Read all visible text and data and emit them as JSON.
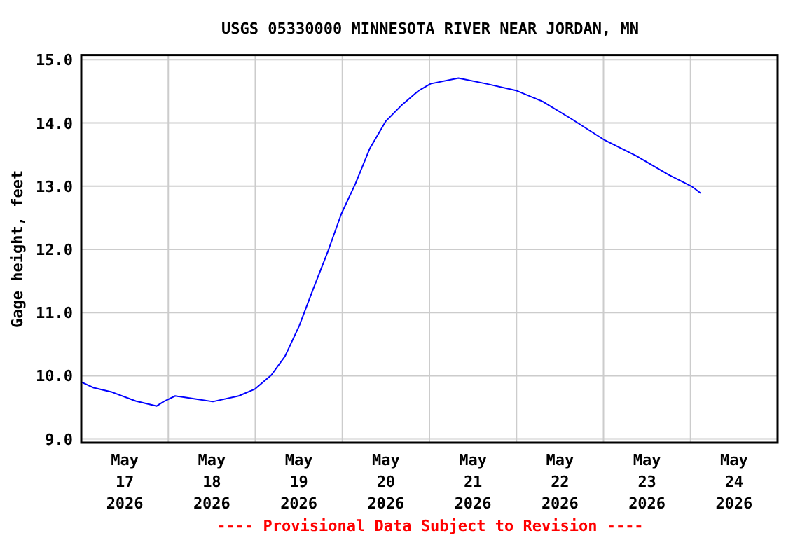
{
  "chart_data": {
    "type": "line",
    "title": "USGS 05330000 MINNESOTA RIVER NEAR JORDAN, MN",
    "ylabel": "Gage height, feet",
    "annotations": [
      "---- Provisional Data Subject to Revision ----"
    ],
    "xlim": [
      "2026-05-17T00:00",
      "2026-05-25T00:00"
    ],
    "xticks": [
      {
        "value": "2026-05-17T00:00",
        "label": null
      },
      {
        "value": "2026-05-17T12:00",
        "label": "May\n17\n2026"
      },
      {
        "value": "2026-05-18T00:00",
        "label": null
      },
      {
        "value": "2026-05-18T12:00",
        "label": "May\n18\n2026"
      },
      {
        "value": "2026-05-19T00:00",
        "label": null
      },
      {
        "value": "2026-05-19T12:00",
        "label": "May\n19\n2026"
      },
      {
        "value": "2026-05-20T00:00",
        "label": null
      },
      {
        "value": "2026-05-20T12:00",
        "label": "May\n20\n2026"
      },
      {
        "value": "2026-05-21T00:00",
        "label": null
      },
      {
        "value": "2026-05-21T12:00",
        "label": "May\n21\n2026"
      },
      {
        "value": "2026-05-22T00:00",
        "label": null
      },
      {
        "value": "2026-05-22T12:00",
        "label": "May\n22\n2026"
      },
      {
        "value": "2026-05-23T00:00",
        "label": null
      },
      {
        "value": "2026-05-23T12:00",
        "label": "May\n23\n2026"
      },
      {
        "value": "2026-05-24T00:00",
        "label": null
      },
      {
        "value": "2026-05-24T12:00",
        "label": "May\n24\n2026"
      }
    ],
    "ylim": [
      8.94,
      15.075
    ],
    "yticks": [
      {
        "value": 9,
        "label": "9.0"
      },
      {
        "value": 10,
        "label": "10.0"
      },
      {
        "value": 11,
        "label": "11.0"
      },
      {
        "value": 12,
        "label": "12.0"
      },
      {
        "value": 13,
        "label": "13.0"
      },
      {
        "value": 14,
        "label": "14.0"
      },
      {
        "value": 15,
        "label": "15.0"
      }
    ],
    "grid": true,
    "x": [
      "2026-05-17T00:00",
      "2026-05-17T03:24",
      "2026-05-17T08:30",
      "2026-05-17T15:00",
      "2026-05-17T20:48",
      "2026-05-17T22:42",
      "2026-05-18T01:54",
      "2026-05-18T07:42",
      "2026-05-18T12:18",
      "2026-05-18T19:24",
      "2026-05-18T23:54",
      "2026-05-19T04:24",
      "2026-05-19T08:12",
      "2026-05-19T12:06",
      "2026-05-19T16:00",
      "2026-05-19T19:54",
      "2026-05-19T23:42",
      "2026-05-20T03:36",
      "2026-05-20T07:30",
      "2026-05-20T12:00",
      "2026-05-20T16:30",
      "2026-05-20T21:00",
      "2026-05-21T00:18",
      "2026-05-21T08:00",
      "2026-05-21T15:42",
      "2026-05-22T00:06",
      "2026-05-22T07:12",
      "2026-05-22T15:00",
      "2026-05-23T00:00",
      "2026-05-23T09:00",
      "2026-05-23T18:00",
      "2026-05-24T00:30",
      "2026-05-24T02:48"
    ],
    "series": [
      {
        "color": "#0000ff",
        "values": [
          9.9,
          9.81,
          9.74,
          9.6,
          9.52,
          9.59,
          9.68,
          9.63,
          9.59,
          9.68,
          9.79,
          10.01,
          10.31,
          10.79,
          11.38,
          11.95,
          12.56,
          13.04,
          13.59,
          14.03,
          14.29,
          14.51,
          14.62,
          14.71,
          14.62,
          14.51,
          14.34,
          14.07,
          13.74,
          13.48,
          13.18,
          12.99,
          12.89
        ]
      }
    ]
  }
}
